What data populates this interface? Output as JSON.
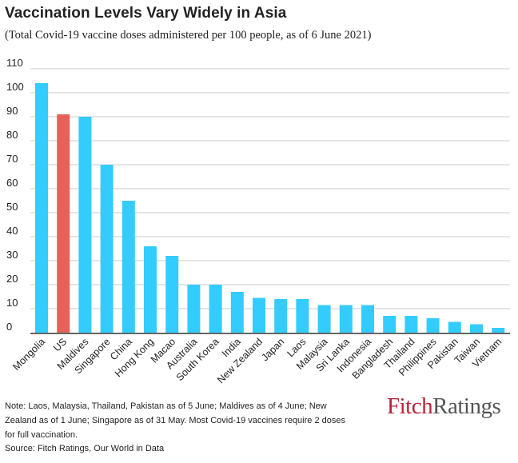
{
  "title": "Vaccination Levels Vary Widely in Asia",
  "subtitle": "(Total Covid-19 vaccine doses administered per 100 people, as of 6 June 2021)",
  "note": "Note: Laos, Malaysia, Thailand, Pakistan as of 5 June; Maldives as of 4 June; New Zealand as of 1 June; Singapore as of 31 May. Most Covid-19 vaccines require 2 doses for full vaccination.",
  "source": "Source: Fitch Ratings, Our World in Data",
  "logo": {
    "part1": "Fitch",
    "part2": "Ratings"
  },
  "colors": {
    "bar": "#33ccff",
    "highlight": "#e8605a",
    "grid": "#cccccc",
    "axis": "#333333"
  },
  "chart_data": {
    "type": "bar",
    "categories": [
      "Mongolia",
      "US",
      "Maldives",
      "Singapore",
      "China",
      "Hong Kong",
      "Macao",
      "Australia",
      "South Korea",
      "India",
      "New Zealand",
      "Japan",
      "Laos",
      "Malaysia",
      "Sri Lanka",
      "Indonesia",
      "Bangladesh",
      "Thailand",
      "Philippines",
      "Pakistan",
      "Taiwan",
      "Vietnam"
    ],
    "values": [
      104,
      91,
      90,
      70,
      55,
      36,
      32,
      20,
      20,
      17,
      14.5,
      14,
      14,
      11.5,
      11.5,
      11.5,
      7,
      7,
      6,
      4.5,
      3.5,
      2
    ],
    "highlight": [
      "US"
    ],
    "yticks": [
      0,
      10,
      20,
      30,
      40,
      50,
      60,
      70,
      80,
      90,
      100,
      110
    ],
    "ylim": [
      0,
      110
    ],
    "grid": true
  }
}
